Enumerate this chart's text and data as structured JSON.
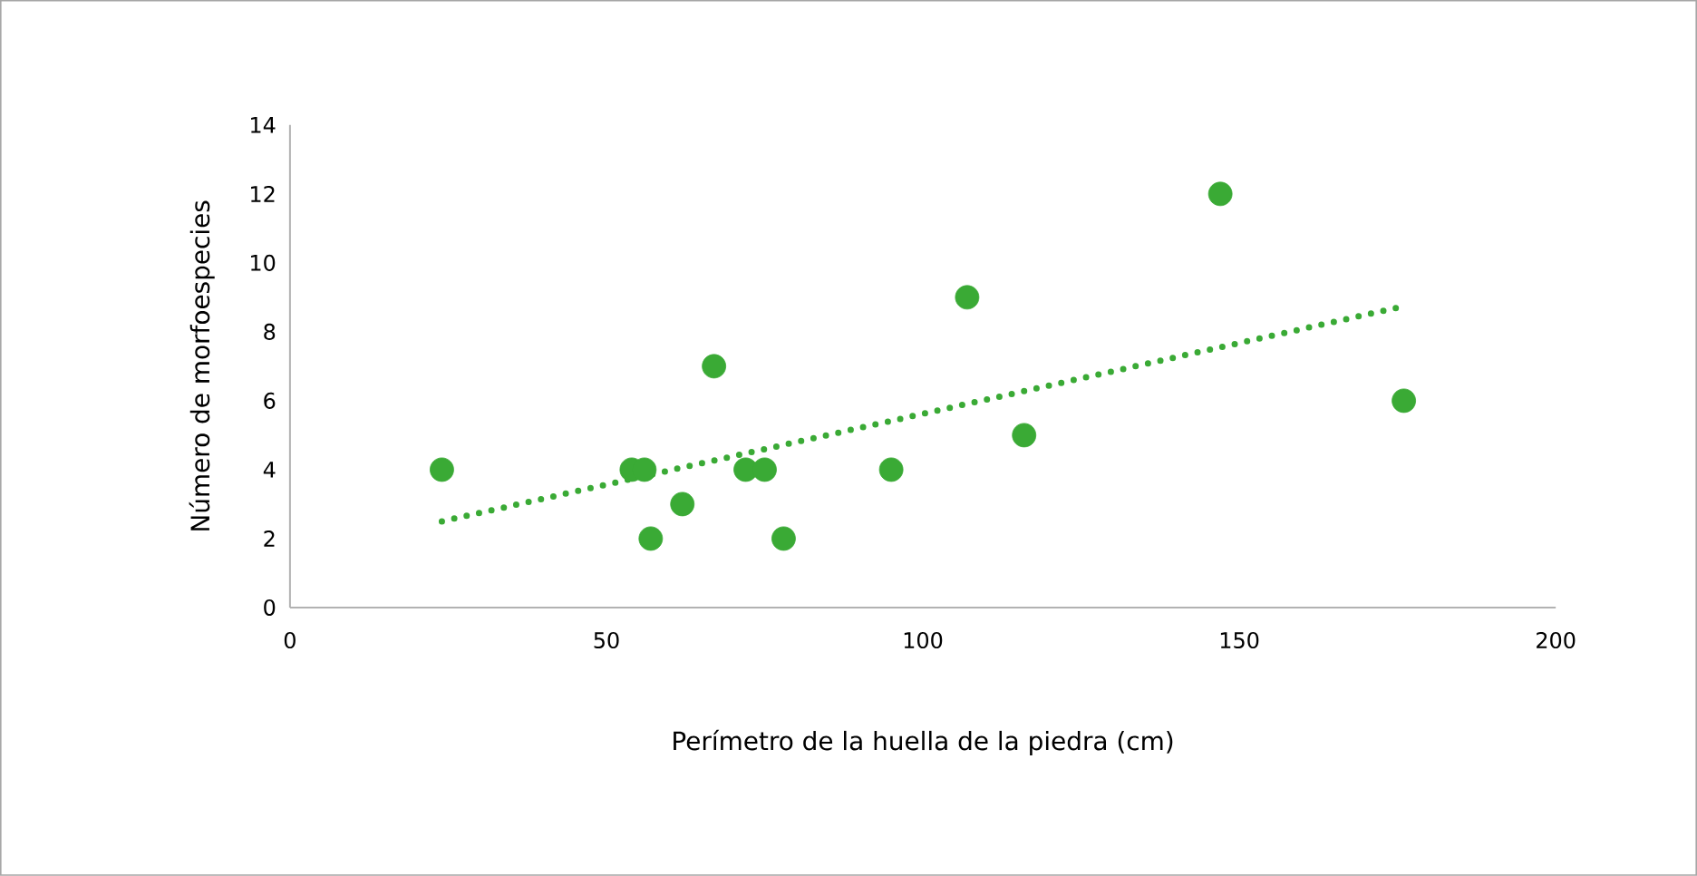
{
  "chart_data": {
    "type": "scatter",
    "xlabel": "Perímetro de la huella de la piedra (cm)",
    "ylabel": "Número de morfoespecies",
    "xlim": [
      0,
      200
    ],
    "ylim": [
      0,
      14
    ],
    "xticks": [
      0,
      50,
      100,
      150,
      200
    ],
    "yticks": [
      0,
      2,
      4,
      6,
      8,
      10,
      12,
      14
    ],
    "series": [
      {
        "marker": "circle",
        "color": "#3aaa35",
        "x": [
          24,
          54,
          56,
          57,
          62,
          67,
          72,
          75,
          78,
          95,
          107,
          116,
          147,
          176
        ],
        "values": [
          4,
          4,
          4,
          2,
          3,
          7,
          4,
          4,
          2,
          4,
          9,
          5,
          12,
          6
        ]
      },
      {
        "type": "line",
        "marker": "none",
        "color": "#3aaa35",
        "line_style": "dotted",
        "x": [
          24,
          175
        ],
        "values": [
          2.5,
          8.7
        ]
      }
    ]
  }
}
